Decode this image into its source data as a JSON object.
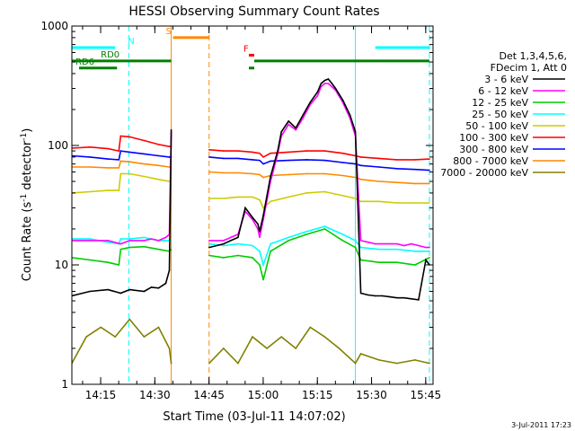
{
  "chart_data": {
    "type": "line",
    "title": "HESSI Observing Summary Count Rates",
    "xlabel": "Start Time (03-Jul-11 14:07:02)",
    "ylabel_main": "Count Rate (s",
    "ylabel_sup1": "-1",
    "ylabel_mid": " detector",
    "ylabel_sup2": "-1",
    "ylabel_end": ")",
    "timestamp": "3-Jul-2011 17:23",
    "x_axis": {
      "unit": "minutes since 14:07:02",
      "range": [
        0,
        100
      ],
      "tick_labels": [
        "14:15",
        "14:30",
        "14:45",
        "15:00",
        "15:15",
        "15:30",
        "15:45"
      ],
      "tick_positions": [
        7.97,
        22.97,
        37.97,
        52.97,
        67.97,
        82.97,
        97.97
      ]
    },
    "y_axis": {
      "scale": "log",
      "range": [
        1,
        1000
      ],
      "tick_labels": [
        "1",
        "10",
        "100",
        "1000"
      ]
    },
    "legend": {
      "placement": "right",
      "header": [
        "Det 1,3,4,5,6,",
        "FDecim 1, Att 0"
      ]
    },
    "series": [
      {
        "name": "3 - 6 keV",
        "color": "#000000",
        "x": [
          0,
          5,
          10,
          13.5,
          16,
          20,
          22,
          24,
          26,
          27,
          27.5,
          38,
          42,
          44,
          46,
          48,
          50,
          51.5,
          52,
          53,
          55,
          57,
          58,
          60,
          62,
          64,
          66,
          68,
          69,
          70,
          71,
          72,
          73,
          75,
          77,
          78.5,
          80,
          82,
          84,
          86,
          88,
          90,
          92,
          94,
          96,
          98,
          99
        ],
        "y": [
          5.5,
          6.0,
          6.2,
          5.8,
          6.2,
          6.0,
          6.5,
          6.4,
          7.0,
          9.0,
          135,
          14,
          15,
          16,
          17,
          30,
          25,
          22,
          19,
          26,
          55,
          90,
          130,
          160,
          140,
          180,
          230,
          280,
          330,
          350,
          360,
          330,
          300,
          240,
          180,
          130,
          5.8,
          5.6,
          5.5,
          5.5,
          5.4,
          5.3,
          5.3,
          5.2,
          5.1,
          11,
          10
        ]
      },
      {
        "name": "6 - 12 keV",
        "color": "#ff00ff",
        "x": [
          0,
          5,
          10,
          13.5,
          16,
          20,
          22,
          24,
          26,
          27,
          27.5,
          38,
          42,
          44,
          46,
          48,
          50,
          51.5,
          52,
          53,
          55,
          57,
          58,
          60,
          62,
          64,
          66,
          68,
          69,
          70,
          71,
          72,
          73,
          75,
          77,
          78.5,
          80,
          82,
          84,
          86,
          88,
          90,
          92,
          94,
          96,
          98,
          99
        ],
        "y": [
          16,
          16,
          16,
          15,
          16,
          16,
          16.5,
          16,
          17,
          18,
          130,
          16,
          16,
          17,
          18,
          28,
          24,
          20,
          17,
          24,
          50,
          85,
          120,
          150,
          135,
          170,
          220,
          260,
          310,
          330,
          330,
          310,
          290,
          230,
          170,
          120,
          16,
          15.5,
          15,
          15,
          15,
          15,
          14.5,
          15,
          14.5,
          14,
          14
        ]
      },
      {
        "name": "12 - 25 keV",
        "color": "#00cc00",
        "x": [
          0,
          5,
          10,
          13,
          13.5,
          16,
          20,
          24,
          27,
          27.5,
          38,
          42,
          46,
          50,
          52,
          53,
          55,
          60,
          65,
          70,
          75,
          78.5,
          80,
          85,
          90,
          95,
          99
        ],
        "y": [
          11.5,
          11,
          10.5,
          10,
          13.5,
          14,
          14.2,
          13.5,
          13,
          13.5,
          12,
          11.5,
          12,
          11.5,
          10,
          7.5,
          13,
          16,
          18,
          20,
          16,
          14,
          11,
          10.5,
          10.5,
          10,
          11.5
        ]
      },
      {
        "name": "25 - 50 keV",
        "color": "#00ffff",
        "x": [
          0,
          5,
          10,
          13,
          13.5,
          16,
          20,
          24,
          27,
          27.5,
          38,
          42,
          46,
          50,
          52,
          53,
          55,
          60,
          65,
          70,
          75,
          78.5,
          80,
          85,
          90,
          95,
          99
        ],
        "y": [
          16.5,
          16.5,
          15.5,
          15,
          16.5,
          16.5,
          17,
          16,
          16,
          16,
          15,
          14.5,
          15,
          14.5,
          13,
          10,
          15,
          17,
          19,
          21,
          18,
          16,
          14,
          13.5,
          13.5,
          13,
          13
        ]
      },
      {
        "name": "50 - 100 keV",
        "color": "#cccc00",
        "x": [
          0,
          5,
          10,
          13,
          13.5,
          16,
          20,
          24,
          27,
          27.5,
          38,
          42,
          46,
          50,
          52,
          53,
          55,
          60,
          65,
          70,
          75,
          78.5,
          80,
          85,
          90,
          95,
          99
        ],
        "y": [
          40,
          41,
          42,
          42,
          58,
          58,
          55,
          52,
          50,
          50,
          36,
          36,
          37,
          37,
          35,
          30,
          34,
          37,
          40,
          41,
          38,
          36,
          34,
          34,
          33,
          33,
          33
        ]
      },
      {
        "name": "100 - 300 keV",
        "color": "#ff0000",
        "x": [
          0,
          5,
          10,
          13,
          13.5,
          16,
          20,
          24,
          27,
          27.5,
          38,
          42,
          46,
          50,
          52,
          53,
          55,
          60,
          65,
          70,
          75,
          78.5,
          80,
          85,
          90,
          95,
          99
        ],
        "y": [
          95,
          97,
          94,
          90,
          120,
          118,
          110,
          102,
          98,
          98,
          92,
          90,
          90,
          88,
          86,
          80,
          86,
          88,
          90,
          90,
          86,
          82,
          80,
          78,
          76,
          76,
          77
        ]
      },
      {
        "name": "300 - 800 keV",
        "color": "#0000ff",
        "x": [
          0,
          5,
          10,
          13,
          13.5,
          16,
          20,
          24,
          27,
          27.5,
          38,
          42,
          46,
          50,
          52,
          53,
          55,
          60,
          65,
          70,
          75,
          78.5,
          80,
          85,
          90,
          95,
          99
        ],
        "y": [
          82,
          80,
          77,
          76,
          90,
          88,
          85,
          82,
          80,
          80,
          80,
          78,
          78,
          76,
          75,
          70,
          74,
          75,
          76,
          75,
          72,
          70,
          68,
          66,
          64,
          63,
          62
        ]
      },
      {
        "name": "800 - 7000 keV",
        "color": "#ff8800",
        "x": [
          0,
          5,
          10,
          13,
          13.5,
          16,
          20,
          24,
          27,
          27.5,
          38,
          42,
          46,
          50,
          52,
          53,
          55,
          60,
          65,
          70,
          75,
          78.5,
          80,
          85,
          90,
          95,
          99
        ],
        "y": [
          66,
          66,
          65,
          65,
          74,
          73,
          70,
          68,
          66,
          66,
          60,
          59,
          59,
          58,
          57,
          54,
          56,
          57,
          58,
          58,
          56,
          54,
          52,
          50,
          49,
          48,
          48
        ]
      },
      {
        "name": "7000 - 20000 keV",
        "color": "#808000",
        "x": [
          0,
          4,
          8,
          12,
          16,
          20,
          24,
          27,
          27.5,
          38,
          42,
          46,
          50,
          54,
          58,
          62,
          66,
          70,
          74,
          78.5,
          80,
          85,
          90,
          95,
          99
        ],
        "y": [
          1.5,
          2.5,
          3,
          2.5,
          3.5,
          2.5,
          3,
          2,
          1.5,
          1.5,
          2,
          1.5,
          2.5,
          2,
          2.5,
          2,
          3,
          2.5,
          2,
          1.5,
          1.8,
          1.6,
          1.5,
          1.6,
          1.5
        ]
      }
    ],
    "flags": [
      {
        "label": "N",
        "color": "#00ffff",
        "segments": [
          [
            0,
            12
          ],
          [
            84,
            99
          ]
        ],
        "level": 660,
        "marker_x": [
          15.5
        ],
        "label_x": 15.5
      },
      {
        "label": "S",
        "color": "#ff8800",
        "segments": [
          [
            28,
            38
          ]
        ],
        "level": 800,
        "marker_x": [
          28
        ],
        "label_x": 26
      },
      {
        "label": "F",
        "color": "#ff0000",
        "segments": [
          [
            49,
            50.5
          ]
        ],
        "level": 570,
        "marker_x": [],
        "label_x": 47.5
      },
      {
        "label": "RD0",
        "color": "#008000",
        "segments": [
          [
            0,
            27.5
          ],
          [
            50.5,
            99
          ]
        ],
        "level": 510,
        "marker_x": [],
        "label_x": 8
      },
      {
        "label": "RD6",
        "color": "#008000",
        "segments": [
          [
            2,
            12.5
          ],
          [
            49,
            50.5
          ]
        ],
        "level": 445,
        "marker_x": [],
        "label_x": 1
      }
    ],
    "gaps": [
      [
        27.5,
        38
      ]
    ],
    "vlines": [
      {
        "x": 0,
        "color": "#00ffff",
        "style": "dashed"
      },
      {
        "x": 15.8,
        "color": "#00ffff",
        "style": "dashed"
      },
      {
        "x": 27.5,
        "color": "#ff8800",
        "style": "solid"
      },
      {
        "x": 38,
        "color": "#ff8800",
        "style": "dashed"
      },
      {
        "x": 78.5,
        "color": "#00ffff",
        "style": "solid"
      },
      {
        "x": 99,
        "color": "#00ffff",
        "style": "dashed"
      }
    ]
  }
}
